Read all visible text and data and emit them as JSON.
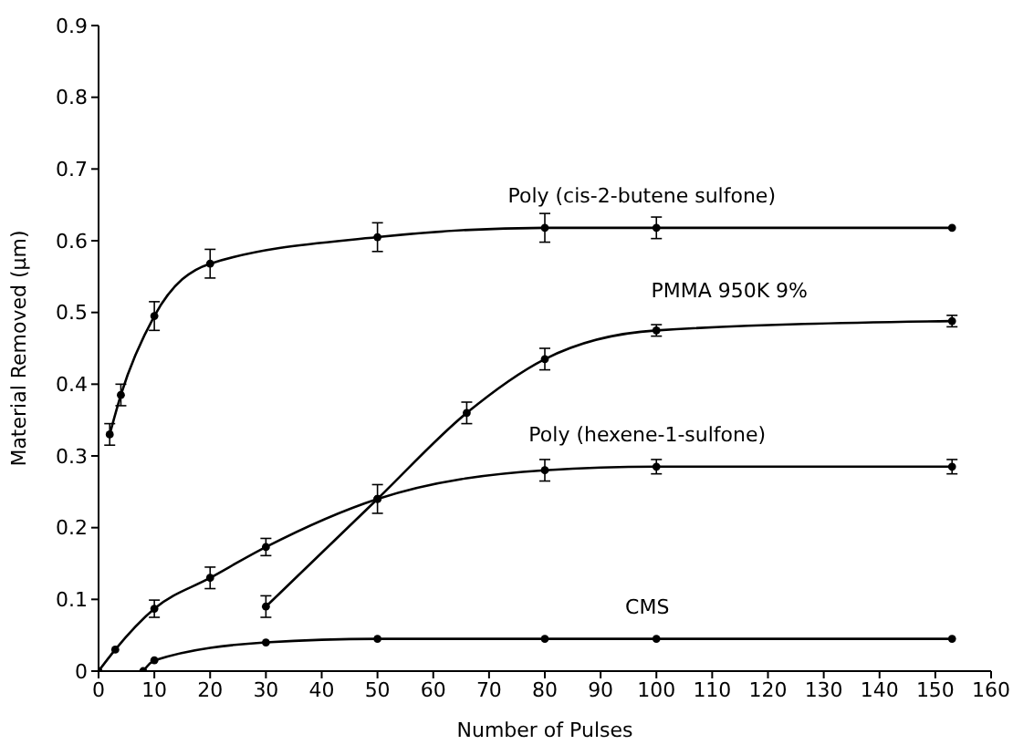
{
  "chart_data": {
    "type": "line",
    "xlabel": "Number of Pulses",
    "ylabel": "Material Removed (μm)",
    "xlim": [
      0,
      160
    ],
    "xticks": [
      0,
      10,
      20,
      30,
      40,
      50,
      60,
      70,
      80,
      90,
      100,
      110,
      120,
      130,
      140,
      150,
      160
    ],
    "ylim": [
      0,
      0.9
    ],
    "yticks": [
      0,
      0.1,
      0.2,
      0.3,
      0.4,
      0.5,
      0.6,
      0.7,
      0.8,
      0.9
    ],
    "marker": "circle",
    "line_style": "solid",
    "series": [
      {
        "name": "Poly (cis-2-butene sulfone)",
        "color": "#000000",
        "x": [
          2,
          4,
          10,
          20,
          50,
          80,
          100,
          153
        ],
        "values": [
          0.33,
          0.385,
          0.495,
          0.568,
          0.605,
          0.618,
          0.618,
          0.618
        ],
        "errors": [
          0.015,
          0.015,
          0.02,
          0.02,
          0.02,
          0.02,
          0.015,
          null
        ]
      },
      {
        "name": "PMMA 950K 9%",
        "color": "#000000",
        "x": [
          30,
          50,
          66,
          80,
          100,
          153
        ],
        "values": [
          0.09,
          0.24,
          0.36,
          0.435,
          0.475,
          0.488
        ],
        "errors": [
          0.015,
          null,
          0.015,
          0.015,
          0.008,
          0.008
        ]
      },
      {
        "name": "Poly (hexene-1-sulfone)",
        "color": "#000000",
        "x": [
          0,
          3,
          10,
          20,
          30,
          50,
          80,
          100,
          153
        ],
        "values": [
          0,
          0.03,
          0.087,
          0.13,
          0.173,
          0.24,
          0.28,
          0.285,
          0.285
        ],
        "errors": [
          null,
          null,
          0.012,
          0.015,
          0.012,
          0.02,
          0.015,
          0.01,
          0.01
        ]
      },
      {
        "name": "CMS",
        "color": "#000000",
        "x": [
          8,
          10,
          30,
          50,
          80,
          100,
          153
        ],
        "values": [
          0,
          0.015,
          0.04,
          0.045,
          0.045,
          0.045,
          0.045
        ]
      }
    ]
  }
}
